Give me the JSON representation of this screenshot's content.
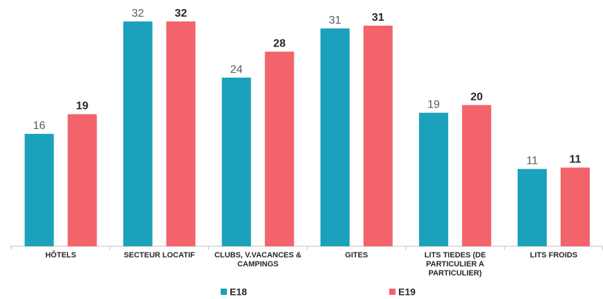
{
  "chart_data": {
    "type": "bar",
    "categories": [
      "HÔTELS",
      "SECTEUR LOCATIF",
      "CLUBS, V.VACANCES & CAMPINGS",
      "GITES",
      "LITS TIEDES (DE PARTICULIER A PARTICULIER)",
      "LITS FROIDS"
    ],
    "series": [
      {
        "name": "E18",
        "color": "#1ba1bb",
        "values": [
          16,
          32,
          24,
          31,
          19,
          11
        ]
      },
      {
        "name": "E19",
        "color": "#f2636b",
        "values": [
          18.8,
          32,
          27.7,
          31.4,
          20.1,
          11.2
        ],
        "value_labels": [
          "19",
          "32",
          "28",
          "31",
          "20",
          "11"
        ]
      }
    ],
    "ylim": [
      0,
      35
    ],
    "legend": "bottom"
  }
}
